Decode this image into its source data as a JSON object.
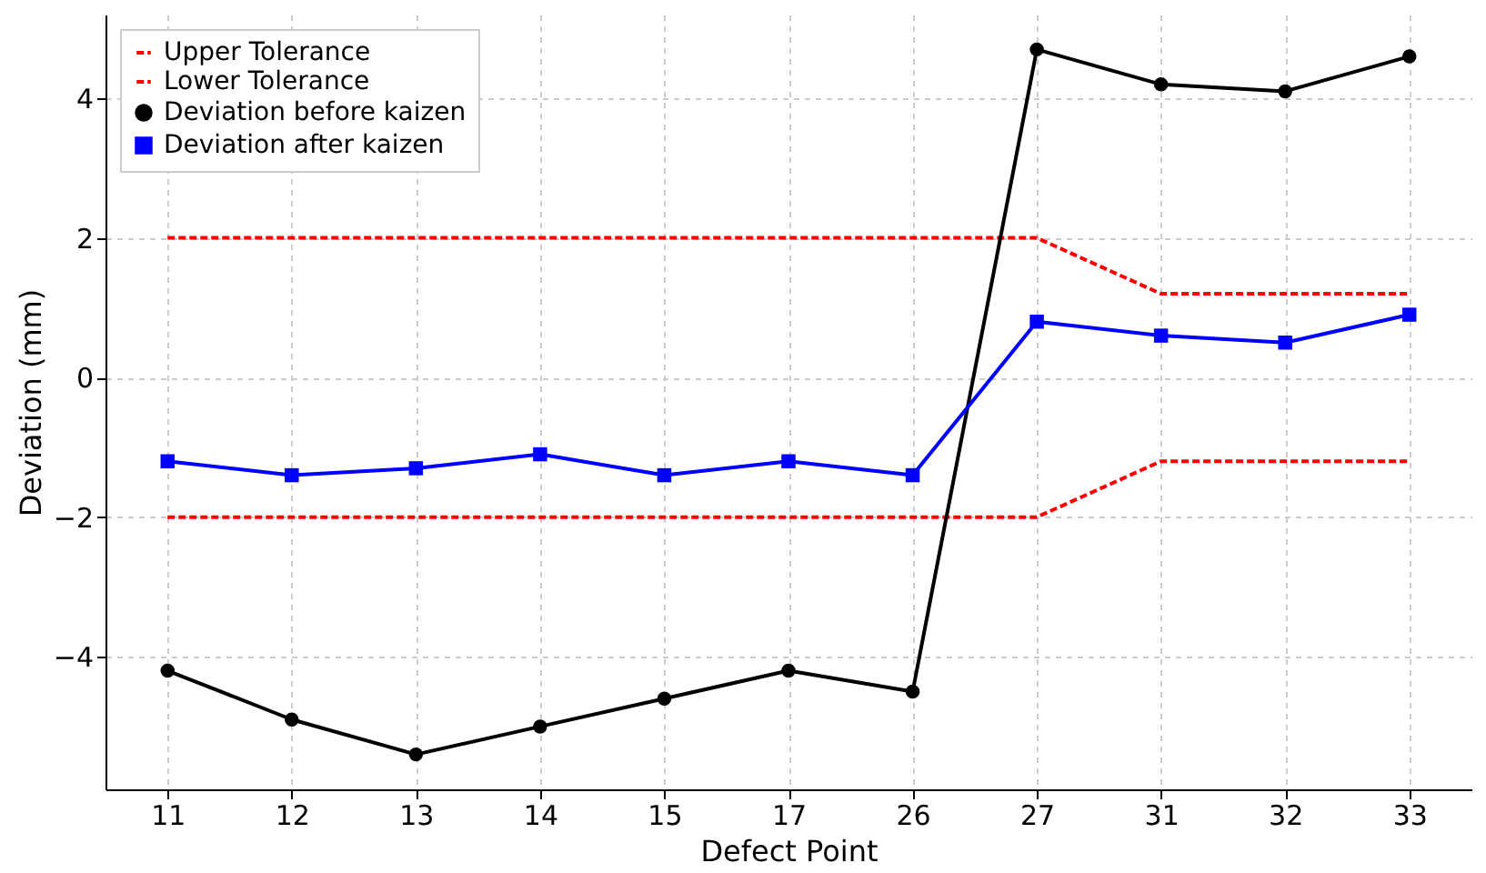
{
  "chart_data": {
    "type": "line",
    "xlabel": "Defect Point",
    "ylabel": "Deviation (mm)",
    "categories": [
      "11",
      "12",
      "13",
      "14",
      "15",
      "17",
      "26",
      "27",
      "31",
      "32",
      "33"
    ],
    "series": [
      {
        "name": "Upper Tolerance",
        "color": "#ff0000",
        "line_style": "dashed",
        "marker": "none",
        "values": [
          2,
          2,
          2,
          2,
          2,
          2,
          2,
          2,
          1.2,
          1.2,
          1.2
        ]
      },
      {
        "name": "Lower Tolerance",
        "color": "#ff0000",
        "line_style": "dashed",
        "marker": "none",
        "values": [
          -2,
          -2,
          -2,
          -2,
          -2,
          -2,
          -2,
          -2,
          -1.2,
          -1.2,
          -1.2
        ]
      },
      {
        "name": "Deviation before kaizen",
        "color": "#000000",
        "line_style": "solid",
        "marker": "circle",
        "values": [
          -4.2,
          -4.9,
          -5.4,
          -5.0,
          -4.6,
          -4.2,
          -4.5,
          4.7,
          4.2,
          4.1,
          4.6
        ]
      },
      {
        "name": "Deviation after kaizen",
        "color": "#0000ff",
        "line_style": "solid",
        "marker": "square",
        "values": [
          -1.2,
          -1.4,
          -1.3,
          -1.1,
          -1.4,
          -1.2,
          -1.4,
          0.8,
          0.6,
          0.5,
          0.9
        ]
      }
    ],
    "ylim": [
      -5.9,
      5.2
    ],
    "yticks": [
      -4,
      -2,
      0,
      2,
      4
    ],
    "grid": true,
    "legend": "top left"
  }
}
